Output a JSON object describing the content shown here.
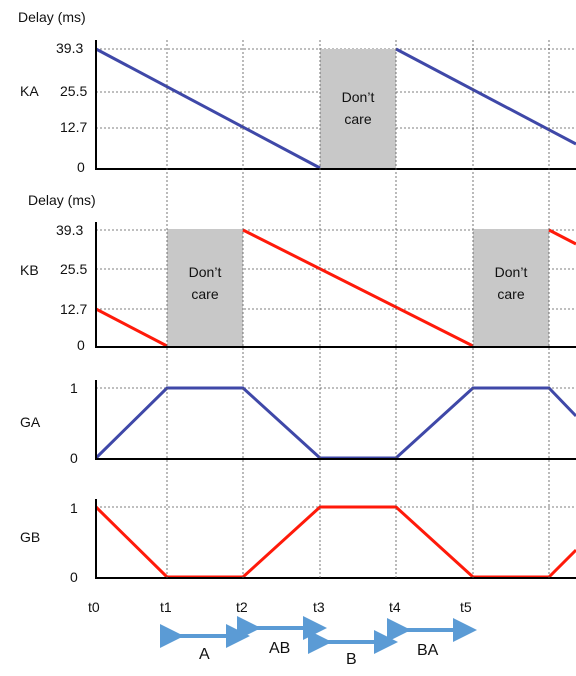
{
  "colors": {
    "blue": "#3f48a8",
    "red": "#ff1a0a",
    "gray": "#c8c8c8",
    "arrow": "#5b9bd5"
  },
  "panels": [
    {
      "key": "KA",
      "title": "Delay (ms)",
      "ticks": [
        "39.3",
        "25.5",
        "12.7",
        "0"
      ]
    },
    {
      "key": "KB",
      "title": "Delay (ms)",
      "ticks": [
        "39.3",
        "25.5",
        "12.7",
        "0"
      ]
    },
    {
      "key": "GA",
      "title": "",
      "ticks": [
        "1",
        "0"
      ]
    },
    {
      "key": "GB",
      "title": "",
      "ticks": [
        "1",
        "0"
      ]
    }
  ],
  "dont_care": "Don’t care",
  "time_labels": [
    "t0",
    "t1",
    "t2",
    "t3",
    "t4",
    "t5"
  ],
  "phases": [
    "A",
    "AB",
    "B",
    "BA"
  ]
}
